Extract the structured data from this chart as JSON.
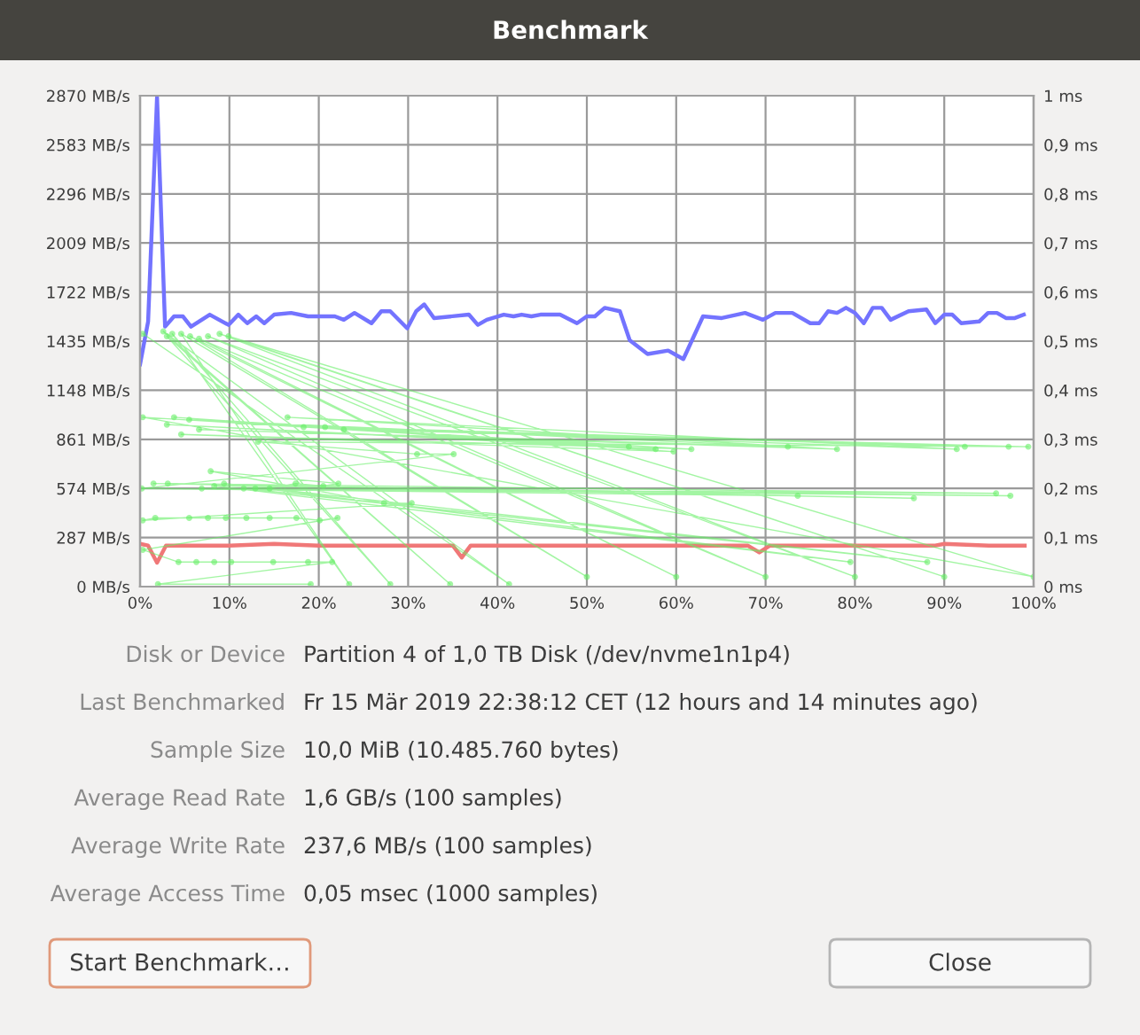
{
  "chart_data": {
    "type": "line",
    "title": "Benchmark",
    "xlim": [
      0,
      100
    ],
    "xticks": [
      {
        "value": 0,
        "label": "0%"
      },
      {
        "value": 10,
        "label": "10%"
      },
      {
        "value": 20,
        "label": "20%"
      },
      {
        "value": 30,
        "label": "30%"
      },
      {
        "value": 40,
        "label": "40%"
      },
      {
        "value": 50,
        "label": "50%"
      },
      {
        "value": 60,
        "label": "60%"
      },
      {
        "value": 70,
        "label": "70%"
      },
      {
        "value": 80,
        "label": "80%"
      },
      {
        "value": 90,
        "label": "90%"
      },
      {
        "value": 100,
        "label": "100%"
      }
    ],
    "ylim": [
      0,
      2870
    ],
    "yticks": [
      {
        "value": 0,
        "label": "0 MB/s"
      },
      {
        "value": 287,
        "label": "287 MB/s"
      },
      {
        "value": 574,
        "label": "574 MB/s"
      },
      {
        "value": 861,
        "label": "861 MB/s"
      },
      {
        "value": 1148,
        "label": "1148 MB/s"
      },
      {
        "value": 1435,
        "label": "1435 MB/s"
      },
      {
        "value": 1722,
        "label": "1722 MB/s"
      },
      {
        "value": 2009,
        "label": "2009 MB/s"
      },
      {
        "value": 2296,
        "label": "2296 MB/s"
      },
      {
        "value": 2583,
        "label": "2583 MB/s"
      },
      {
        "value": 2870,
        "label": "2870 MB/s"
      }
    ],
    "y2lim": [
      0,
      1
    ],
    "y2ticks": [
      {
        "value": 0,
        "label": "0 ms"
      },
      {
        "value": 0.1,
        "label": "0,1 ms"
      },
      {
        "value": 0.2,
        "label": "0,2 ms"
      },
      {
        "value": 0.3,
        "label": "0,3 ms"
      },
      {
        "value": 0.4,
        "label": "0,4 ms"
      },
      {
        "value": 0.5,
        "label": "0,5 ms"
      },
      {
        "value": 0.6,
        "label": "0,6 ms"
      },
      {
        "value": 0.7,
        "label": "0,7 ms"
      },
      {
        "value": 0.8,
        "label": "0,8 ms"
      },
      {
        "value": 0.9,
        "label": "0,9 ms"
      },
      {
        "value": 1,
        "label": "1 ms"
      }
    ],
    "grid": true,
    "legend": false,
    "series": [
      {
        "color": "#7373ff",
        "x": [
          0,
          0.9,
          1.9,
          2.8,
          3.8,
          4.8,
          5.7,
          7.8,
          9.9,
          11,
          12,
          13,
          13.9,
          15,
          16.9,
          18.8,
          21.8,
          22.8,
          24,
          25.9,
          27,
          28,
          29.9,
          30.9,
          31.8,
          32.9,
          36.8,
          37.8,
          38.8,
          40.7,
          41.8,
          42.7,
          43.8,
          44.8,
          47,
          48.9,
          50,
          50.9,
          52,
          53.7,
          54.8,
          56.8,
          59.1,
          60.8,
          63,
          65.1,
          67.7,
          69.7,
          71.1,
          73,
          75,
          76,
          77,
          78,
          79,
          80,
          81,
          82,
          83,
          84,
          86,
          88,
          89,
          90,
          90.9,
          91.9,
          93.9,
          94.9,
          95.9,
          96.9,
          97.9,
          98.9
        ],
        "values": [
          1300,
          1550,
          2860,
          1520,
          1580,
          1580,
          1520,
          1590,
          1530,
          1590,
          1540,
          1580,
          1540,
          1590,
          1600,
          1580,
          1580,
          1560,
          1600,
          1540,
          1610,
          1610,
          1510,
          1610,
          1650,
          1570,
          1590,
          1530,
          1560,
          1590,
          1580,
          1590,
          1580,
          1590,
          1590,
          1540,
          1580,
          1580,
          1630,
          1610,
          1440,
          1360,
          1380,
          1330,
          1580,
          1570,
          1600,
          1560,
          1600,
          1600,
          1540,
          1540,
          1610,
          1600,
          1630,
          1600,
          1540,
          1630,
          1630,
          1560,
          1610,
          1620,
          1540,
          1590,
          1590,
          1540,
          1550,
          1600,
          1600,
          1570,
          1570,
          1590
        ]
      },
      {
        "color": "#f07878",
        "x": [
          0,
          0.9,
          1.9,
          2.9,
          10,
          15,
          20,
          30,
          35,
          36,
          37,
          45,
          50,
          68,
          69.3,
          70.5,
          85,
          89,
          90,
          95,
          97,
          99
        ],
        "values": [
          250,
          240,
          140,
          240,
          240,
          250,
          240,
          240,
          240,
          170,
          240,
          240,
          240,
          240,
          200,
          240,
          240,
          240,
          250,
          240,
          240,
          240
        ]
      },
      {
        "type": "line",
        "axis": "y2",
        "color": "#66ee66",
        "marker": "circle",
        "line_style": "solid",
        "x": [
          0.3,
          41.3,
          2.6,
          34.7,
          3,
          28,
          3.6,
          23.4,
          4.6,
          50,
          5.6,
          60,
          6.6,
          70,
          7.6,
          80,
          8.9,
          90,
          9.9,
          100,
          0.3,
          54.7,
          3,
          57.7,
          3.8,
          59.7,
          4.6,
          61.7,
          5.5,
          72.5,
          6.6,
          78,
          16.5,
          91.4,
          18.3,
          92.3,
          20.7,
          97.2,
          22.8,
          99.4,
          13.2,
          31,
          35.1,
          0.2,
          73.6,
          1.5,
          86.6,
          3.1,
          95.8,
          6.9,
          97.4,
          8.3,
          79.5,
          9.4,
          88.1,
          11.6,
          12.9,
          14.5,
          17.4,
          20.5,
          22.2,
          7.9,
          27.3,
          30.4,
          0.3,
          1.7,
          5.5,
          7.6,
          9.6,
          11.9,
          14.5,
          17.5,
          20.1,
          22.1,
          0.3,
          4.3,
          6.3,
          8.3,
          10.2,
          14.9,
          18.8,
          21.5,
          2,
          19.1
        ],
        "values": [
          0.515,
          0.005,
          0.52,
          0.005,
          0.51,
          0.005,
          0.515,
          0.005,
          0.515,
          0.02,
          0.51,
          0.02,
          0.505,
          0.02,
          0.51,
          0.02,
          0.515,
          0.02,
          0.51,
          0.02,
          0.345,
          0.285,
          0.33,
          0.28,
          0.345,
          0.275,
          0.31,
          0.28,
          0.34,
          0.285,
          0.32,
          0.28,
          0.345,
          0.28,
          0.325,
          0.285,
          0.325,
          0.285,
          0.32,
          0.285,
          0.295,
          0.27,
          0.27,
          0.2,
          0.185,
          0.21,
          0.18,
          0.21,
          0.19,
          0.2,
          0.185,
          0.205,
          0.05,
          0.21,
          0.05,
          0.2,
          0.2,
          0.2,
          0.21,
          0.205,
          0.21,
          0.235,
          0.17,
          0.17,
          0.135,
          0.14,
          0.14,
          0.14,
          0.14,
          0.14,
          0.14,
          0.14,
          0.135,
          0.14,
          0.075,
          0.05,
          0.05,
          0.05,
          0.05,
          0.05,
          0.05,
          0.05,
          0.005,
          0.005
        ]
      }
    ],
    "annotations": [
      "Disk or Device",
      "Partition 4 of 1,0 TB Disk (/dev/nvme1n1p4)",
      "Last Benchmarked",
      "Fr 15 Mär 2019 22:38:12 CET (12 hours and 14 minutes ago)",
      "Sample Size",
      "10,0 MiB (10.485.760 bytes)",
      "Average Read Rate",
      "1,6 GB/s (100 samples)",
      "Average Write Rate",
      "237,6 MB/s (100 samples)",
      "Average Access Time",
      "0,05 msec (1000 samples)",
      "Start Benchmark…",
      "Close"
    ]
  }
}
